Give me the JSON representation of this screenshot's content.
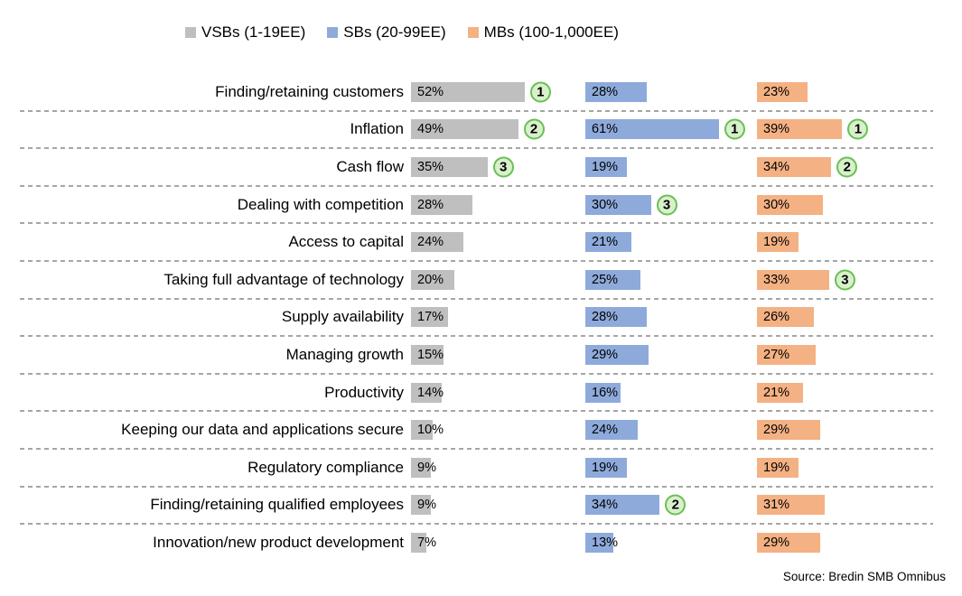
{
  "chart_data": {
    "type": "bar",
    "orientation": "horizontal",
    "title": "",
    "legend_position": "top",
    "grid": "dashed-row-separators",
    "xlim": [
      0,
      80
    ],
    "value_label_format": "percent",
    "categories": [
      "Finding/retaining customers",
      "Inflation",
      "Cash flow",
      "Dealing with competition",
      "Access to capital",
      "Taking full advantage of technology",
      "Supply availability",
      "Managing growth",
      "Productivity",
      "Keeping our data and applications secure",
      "Regulatory compliance",
      "Finding/retaining qualified employees",
      "Innovation/new product development"
    ],
    "series": [
      {
        "name": "VSBs (1-19EE)",
        "color": "#BFBFBF",
        "values": [
          52,
          49,
          35,
          28,
          24,
          20,
          17,
          15,
          14,
          10,
          9,
          9,
          7
        ],
        "ranks": [
          1,
          2,
          3,
          null,
          null,
          null,
          null,
          null,
          null,
          null,
          null,
          null,
          null
        ]
      },
      {
        "name": "SBs (20-99EE)",
        "color": "#8EAADB",
        "values": [
          28,
          61,
          19,
          30,
          21,
          25,
          28,
          29,
          16,
          24,
          19,
          34,
          13
        ],
        "ranks": [
          null,
          1,
          null,
          3,
          null,
          null,
          null,
          null,
          null,
          null,
          null,
          2,
          null
        ]
      },
      {
        "name": "MBs (100-1,000EE)",
        "color": "#F4B183",
        "values": [
          23,
          39,
          34,
          30,
          19,
          33,
          26,
          27,
          21,
          29,
          19,
          31,
          29
        ],
        "ranks": [
          null,
          1,
          2,
          null,
          null,
          3,
          null,
          null,
          null,
          null,
          null,
          null,
          null
        ]
      }
    ],
    "source": "Source: Bredin SMB Omnibus"
  },
  "colors": {
    "rank_circle_fill": "#D9F0CC",
    "rank_circle_border": "#6ABF54",
    "separator": "#A6A6A6"
  }
}
